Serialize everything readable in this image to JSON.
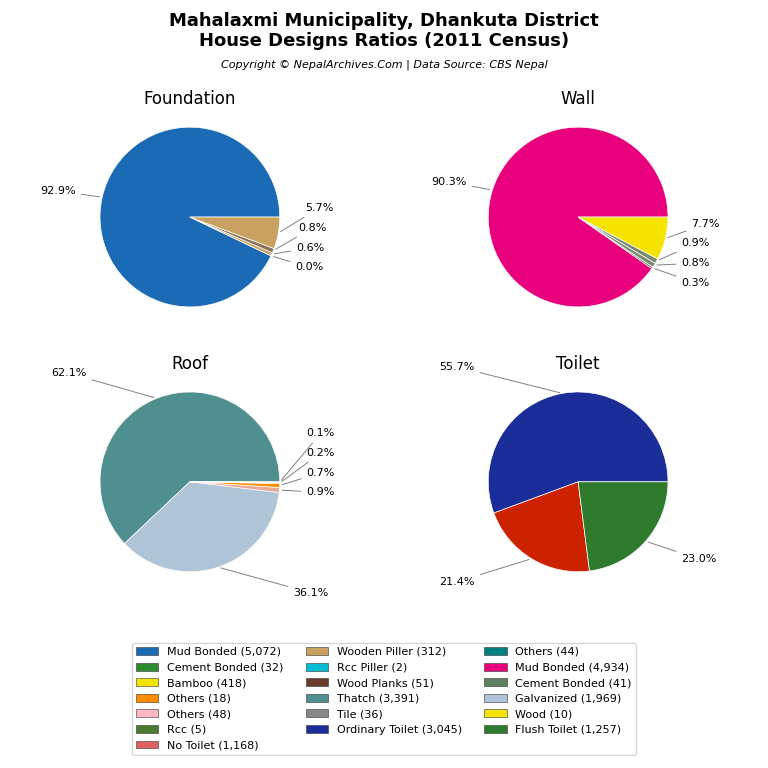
{
  "title": "Mahalaxmi Municipality, Dhankuta District\nHouse Designs Ratios (2011 Census)",
  "subtitle": "Copyright © NepalArchives.Com | Data Source: CBS Nepal",
  "legend": "lower center",
  "series": [
    {
      "name": "Mud Bonded (5,072)",
      "color": "#1a6ab5"
    },
    {
      "name": "Cement Bonded (32)",
      "color": "#2e8b2e"
    },
    {
      "name": "Bamboo (418)",
      "color": "#f5e400"
    },
    {
      "name": "Others (18)",
      "color": "#ff8c00"
    },
    {
      "name": "Others (48)",
      "color": "#ffb6c1"
    },
    {
      "name": "Rcc (5)",
      "color": "#4a7a30"
    },
    {
      "name": "No Toilet (1,168)",
      "color": "#e06060"
    },
    {
      "name": "Wooden Piller (312)",
      "color": "#c8a060"
    },
    {
      "name": "Rcc Piller (2)",
      "color": "#00bcd4"
    },
    {
      "name": "Wood Planks (51)",
      "color": "#6b3a2a"
    },
    {
      "name": "Thatch (3,391)",
      "color": "#4f8f8f"
    },
    {
      "name": "Tile (36)",
      "color": "#888888"
    },
    {
      "name": "Ordinary Toilet (3,045)",
      "color": "#1a2d99"
    },
    {
      "name": "Others (44)",
      "color": "#008080"
    },
    {
      "name": "Mud Bonded (4,934)",
      "color": "#e8007d"
    },
    {
      "name": "Cement Bonded (41)",
      "color": "#5f7f5f"
    },
    {
      "name": "Galvanized (1,969)",
      "color": "#b0c4d8"
    },
    {
      "name": "Wood (10)",
      "color": "#f5e400"
    },
    {
      "name": "Flush Toilet (1,257)",
      "color": "#2e7b2e"
    }
  ],
  "chart_data": [
    {
      "type": "pie",
      "title": "Foundation",
      "values": [
        92.9,
        0.0,
        0.6,
        0.8,
        5.7
      ],
      "value_labels": [
        "92.9%",
        "0.0%",
        "0.6%",
        "0.8%",
        "5.7%"
      ],
      "colors": [
        "#1a6ab5",
        "#2e8b2e",
        "#c8a060",
        "#8b7355",
        "#c8a060"
      ],
      "data_labels": true
    },
    {
      "type": "pie",
      "title": "Wall",
      "values": [
        90.3,
        0.3,
        0.8,
        0.9,
        7.7
      ],
      "value_labels": [
        "90.3%",
        "0.3%",
        "0.8%",
        "0.9%",
        "7.7%"
      ],
      "colors": [
        "#e8007d",
        "#5a5a3a",
        "#7a8a70",
        "#7a8a70",
        "#f5e400"
      ],
      "data_labels": true
    },
    {
      "type": "pie",
      "title": "Roof",
      "values": [
        62.1,
        36.1,
        0.9,
        0.7,
        0.2,
        0.1
      ],
      "value_labels": [
        "62.1%",
        "36.1%",
        "0.9%",
        "0.7%",
        "0.2%",
        "0.1%"
      ],
      "colors": [
        "#4f8f8f",
        "#b0c4d8",
        "#e8a898",
        "#ff8c00",
        "#ffb090",
        "#ffc0a0"
      ],
      "data_labels": true
    },
    {
      "type": "pie",
      "title": "Toilet",
      "values": [
        55.7,
        21.4,
        23.0
      ],
      "value_labels": [
        "55.7%",
        "21.4%",
        "23.0%"
      ],
      "colors": [
        "#1a2d99",
        "#cc2200",
        "#2e7b2e"
      ],
      "data_labels": true
    }
  ]
}
